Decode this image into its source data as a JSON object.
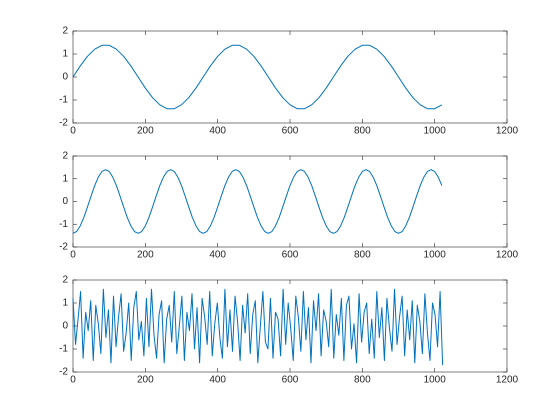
{
  "chart_data": [
    {
      "type": "line",
      "color": "#0072bd",
      "xlim": [
        0,
        1200
      ],
      "ylim": [
        -2,
        2
      ],
      "xticks": [
        0,
        200,
        400,
        600,
        800,
        1000,
        1200
      ],
      "yticks": [
        -2,
        -1,
        0,
        1,
        2
      ],
      "x": [
        0,
        20,
        40,
        60,
        80,
        100,
        120,
        140,
        160,
        180,
        200,
        220,
        240,
        260,
        280,
        300,
        320,
        340,
        360,
        380,
        400,
        420,
        440,
        460,
        480,
        500,
        520,
        540,
        560,
        580,
        600,
        620,
        640,
        660,
        680,
        700,
        720,
        740,
        760,
        780,
        800,
        820,
        840,
        860,
        880,
        900,
        920,
        940,
        960,
        980,
        1000,
        1020
      ],
      "values": [
        0,
        0.48,
        0.9,
        1.21,
        1.38,
        1.38,
        1.21,
        0.9,
        0.48,
        0,
        -0.48,
        -0.9,
        -1.21,
        -1.38,
        -1.38,
        -1.21,
        -0.9,
        -0.48,
        0,
        0.48,
        0.9,
        1.21,
        1.38,
        1.38,
        1.21,
        0.9,
        0.48,
        0,
        -0.48,
        -0.9,
        -1.21,
        -1.38,
        -1.38,
        -1.21,
        -0.9,
        -0.48,
        0,
        0.48,
        0.9,
        1.21,
        1.38,
        1.38,
        1.21,
        0.9,
        0.48,
        0,
        -0.48,
        -0.9,
        -1.21,
        -1.38,
        -1.38,
        -1.21
      ]
    },
    {
      "type": "line",
      "color": "#0072bd",
      "xlim": [
        0,
        1200
      ],
      "ylim": [
        -2,
        2
      ],
      "xticks": [
        0,
        200,
        400,
        600,
        800,
        1000,
        1200
      ],
      "yticks": [
        -2,
        -1,
        0,
        1,
        2
      ],
      "x": [
        0,
        10,
        20,
        30,
        40,
        50,
        60,
        70,
        80,
        90,
        100,
        110,
        120,
        130,
        140,
        150,
        160,
        170,
        180,
        190,
        200,
        210,
        220,
        230,
        240,
        250,
        260,
        270,
        280,
        290,
        300,
        310,
        320,
        330,
        340,
        350,
        360,
        370,
        380,
        390,
        400,
        410,
        420,
        430,
        440,
        450,
        460,
        470,
        480,
        490,
        500,
        510,
        520,
        530,
        540,
        550,
        560,
        570,
        580,
        590,
        600,
        610,
        620,
        630,
        640,
        650,
        660,
        670,
        680,
        690,
        700,
        710,
        720,
        730,
        740,
        750,
        760,
        770,
        780,
        790,
        800,
        810,
        820,
        830,
        840,
        850,
        860,
        870,
        880,
        890,
        900,
        910,
        920,
        930,
        940,
        950,
        960,
        970,
        980,
        990,
        1000,
        1010,
        1020
      ],
      "values": [
        -1.4,
        -1.32,
        -1.07,
        -0.7,
        -0.24,
        0.24,
        0.7,
        1.07,
        1.32,
        1.4,
        1.32,
        1.07,
        0.7,
        0.24,
        -0.24,
        -0.7,
        -1.07,
        -1.32,
        -1.4,
        -1.32,
        -1.07,
        -0.7,
        -0.24,
        0.24,
        0.7,
        1.07,
        1.32,
        1.4,
        1.32,
        1.07,
        0.7,
        0.24,
        -0.24,
        -0.7,
        -1.07,
        -1.32,
        -1.4,
        -1.32,
        -1.07,
        -0.7,
        -0.24,
        0.24,
        0.7,
        1.07,
        1.32,
        1.4,
        1.32,
        1.07,
        0.7,
        0.24,
        -0.24,
        -0.7,
        -1.07,
        -1.32,
        -1.4,
        -1.32,
        -1.07,
        -0.7,
        -0.24,
        0.24,
        0.7,
        1.07,
        1.32,
        1.4,
        1.32,
        1.07,
        0.7,
        0.24,
        -0.24,
        -0.7,
        -1.07,
        -1.32,
        -1.4,
        -1.32,
        -1.07,
        -0.7,
        -0.24,
        0.24,
        0.7,
        1.07,
        1.32,
        1.4,
        1.32,
        1.07,
        0.7,
        0.24,
        -0.24,
        -0.7,
        -1.07,
        -1.32,
        -1.4,
        -1.32,
        -1.07,
        -0.7,
        -0.24,
        0.24,
        0.7,
        1.07,
        1.32,
        1.4,
        1.32,
        1.07,
        0.7
      ]
    },
    {
      "type": "line",
      "color": "#0072bd",
      "xlim": [
        0,
        1200
      ],
      "ylim": [
        -2,
        2
      ],
      "xticks": [
        0,
        200,
        400,
        600,
        800,
        1000,
        1200
      ],
      "yticks": [
        -2,
        -1,
        0,
        1,
        2
      ],
      "x": [
        0,
        7,
        14,
        21,
        28,
        35,
        42,
        49,
        56,
        63,
        70,
        77,
        84,
        91,
        98,
        105,
        112,
        119,
        126,
        133,
        140,
        147,
        154,
        161,
        168,
        175,
        182,
        189,
        196,
        203,
        210,
        217,
        224,
        231,
        238,
        245,
        252,
        259,
        266,
        273,
        280,
        287,
        294,
        301,
        308,
        315,
        322,
        329,
        336,
        343,
        350,
        357,
        364,
        371,
        378,
        385,
        392,
        399,
        406,
        413,
        420,
        427,
        434,
        441,
        448,
        455,
        462,
        469,
        476,
        483,
        490,
        497,
        504,
        511,
        518,
        525,
        532,
        539,
        546,
        553,
        560,
        567,
        574,
        581,
        588,
        595,
        602,
        609,
        616,
        623,
        630,
        637,
        644,
        651,
        658,
        665,
        672,
        679,
        686,
        693,
        700,
        707,
        714,
        721,
        728,
        735,
        742,
        749,
        756,
        763,
        770,
        777,
        784,
        791,
        798,
        805,
        812,
        819,
        826,
        833,
        840,
        847,
        854,
        861,
        868,
        875,
        882,
        889,
        896,
        903,
        910,
        917,
        924,
        931,
        938,
        945,
        952,
        959,
        966,
        973,
        980,
        987,
        994,
        1001,
        1008,
        1015,
        1022
      ],
      "values": [
        1.2,
        -0.8,
        0.3,
        1.5,
        -1.4,
        0.6,
        -0.2,
        1.1,
        -1.5,
        0.9,
        0.1,
        -1.2,
        1.6,
        -0.5,
        0.7,
        -1.6,
        1.3,
        -0.9,
        0.4,
        1.4,
        -1.1,
        -0.3,
        1.0,
        -1.5,
        0.8,
        1.5,
        -0.6,
        0.2,
        -1.3,
        1.2,
        -0.9,
        1.6,
        -0.4,
        -1.4,
        0.5,
        1.1,
        -1.6,
        0.3,
        0.9,
        -0.7,
        1.5,
        -1.2,
        0.0,
        1.3,
        -1.5,
        0.6,
        -0.2,
        1.4,
        -1.0,
        0.8,
        -1.6,
        1.2,
        0.4,
        -0.8,
        1.5,
        -1.3,
        0.1,
        1.0,
        -0.5,
        -1.4,
        1.6,
        -0.9,
        0.7,
        -1.1,
        1.3,
        0.2,
        -1.5,
        0.9,
        -0.3,
        1.4,
        -1.2,
        0.5,
        1.1,
        -1.6,
        0.0,
        1.5,
        -0.7,
        -1.0,
        1.2,
        -1.4,
        0.6,
        0.3,
        -1.3,
        1.6,
        -0.8,
        1.0,
        -0.1,
        -1.5,
        1.3,
        0.4,
        -1.1,
        1.5,
        -0.6,
        0.8,
        -1.6,
        1.1,
        -0.2,
        1.4,
        -1.3,
        0.7,
        0.2,
        -0.9,
        1.6,
        -1.4,
        0.5,
        -0.4,
        1.2,
        -1.5,
        0.9,
        1.3,
        -1.0,
        0.1,
        -1.6,
        1.4,
        -0.7,
        0.6,
        1.0,
        -1.2,
        0.3,
        -1.4,
        1.5,
        -0.5,
        0.8,
        -1.5,
        1.2,
        -0.1,
        -1.1,
        1.6,
        -0.8,
        0.4,
        1.3,
        -1.3,
        0.7,
        -0.6,
        1.1,
        -1.6,
        0.9,
        0.2,
        -1.2,
        1.4,
        -0.3,
        -1.5,
        1.0,
        0.5,
        -0.9,
        1.5,
        -1.7
      ]
    }
  ]
}
